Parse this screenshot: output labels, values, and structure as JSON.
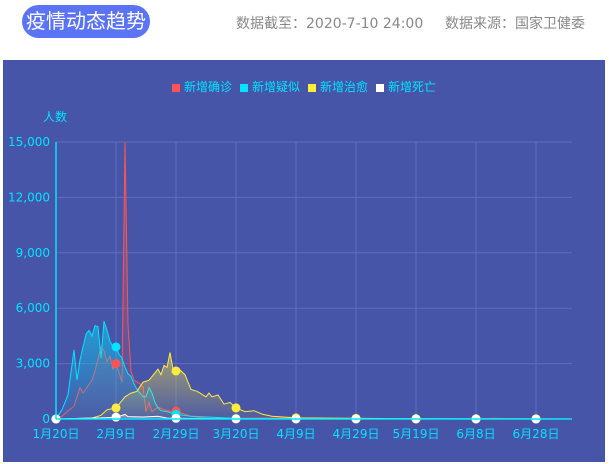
{
  "header": {
    "title": "疫情动态趋势",
    "data_as_of": "数据截至：2020-7-10 24:00",
    "source": "数据来源：国家卫健委"
  },
  "chart_data": {
    "type": "area",
    "ylabel": "人数",
    "ylim": [
      0,
      15000
    ],
    "yticks": [
      "0",
      "3,000",
      "6,000",
      "9,000",
      "12,000",
      "15,000"
    ],
    "xrange": [
      "2020-01-20",
      "2020-07-10"
    ],
    "xticks": [
      {
        "date": "2020-01-20",
        "label": "1月20日"
      },
      {
        "date": "2020-02-09",
        "label": "2月9日"
      },
      {
        "date": "2020-02-29",
        "label": "2月29日"
      },
      {
        "date": "2020-03-20",
        "label": "3月20日"
      },
      {
        "date": "2020-04-09",
        "label": "4月9日"
      },
      {
        "date": "2020-04-29",
        "label": "4月29日"
      },
      {
        "date": "2020-05-19",
        "label": "5月19日"
      },
      {
        "date": "2020-06-08",
        "label": "6月8日"
      },
      {
        "date": "2020-06-28",
        "label": "6月28日"
      }
    ],
    "grid": true,
    "legend_position": "top-center",
    "series": [
      {
        "name": "新增确诊",
        "color": "#ff5353",
        "points": [
          [
            "2020-01-20",
            0
          ],
          [
            "2020-01-22",
            150
          ],
          [
            "2020-01-24",
            450
          ],
          [
            "2020-01-26",
            700
          ],
          [
            "2020-01-28",
            1700
          ],
          [
            "2020-01-29",
            1400
          ],
          [
            "2020-02-01",
            2100
          ],
          [
            "2020-02-02",
            2600
          ],
          [
            "2020-02-04",
            3900
          ],
          [
            "2020-02-05",
            3700
          ],
          [
            "2020-02-06",
            3100
          ],
          [
            "2020-02-07",
            3400
          ],
          [
            "2020-02-08",
            2700
          ],
          [
            "2020-02-09",
            3000
          ],
          [
            "2020-02-10",
            2500
          ],
          [
            "2020-02-11",
            2000
          ],
          [
            "2020-02-12",
            15150
          ],
          [
            "2020-02-13",
            5100
          ],
          [
            "2020-02-14",
            2600
          ],
          [
            "2020-02-15",
            2100
          ],
          [
            "2020-02-16",
            2000
          ],
          [
            "2020-02-17",
            1900
          ],
          [
            "2020-02-18",
            1750
          ],
          [
            "2020-02-19",
            400
          ],
          [
            "2020-02-20",
            900
          ],
          [
            "2020-02-21",
            400
          ],
          [
            "2020-02-23",
            650
          ],
          [
            "2020-02-25",
            500
          ],
          [
            "2020-02-27",
            430
          ],
          [
            "2020-02-29",
            430
          ],
          [
            "2020-03-05",
            140
          ],
          [
            "2020-03-10",
            30
          ],
          [
            "2020-03-20",
            40
          ],
          [
            "2020-04-09",
            60
          ],
          [
            "2020-04-29",
            10
          ],
          [
            "2020-06-08",
            5
          ],
          [
            "2020-06-14",
            40
          ],
          [
            "2020-06-28",
            15
          ],
          [
            "2020-07-10",
            10
          ]
        ]
      },
      {
        "name": "新增疑似",
        "color": "#00e5ff",
        "points": [
          [
            "2020-01-20",
            0
          ],
          [
            "2020-01-22",
            500
          ],
          [
            "2020-01-24",
            1300
          ],
          [
            "2020-01-26",
            3740
          ],
          [
            "2020-01-27",
            2100
          ],
          [
            "2020-01-28",
            3200
          ],
          [
            "2020-01-30",
            4600
          ],
          [
            "2020-01-31",
            4800
          ],
          [
            "2020-02-01",
            4500
          ],
          [
            "2020-02-02",
            5050
          ],
          [
            "2020-02-03",
            5000
          ],
          [
            "2020-02-04",
            3300
          ],
          [
            "2020-02-05",
            5300
          ],
          [
            "2020-02-06",
            4800
          ],
          [
            "2020-02-07",
            4200
          ],
          [
            "2020-02-08",
            3900
          ],
          [
            "2020-02-09",
            3900
          ],
          [
            "2020-02-10",
            3500
          ],
          [
            "2020-02-11",
            3300
          ],
          [
            "2020-02-12",
            2800
          ],
          [
            "2020-02-13",
            2450
          ],
          [
            "2020-02-14",
            2300
          ],
          [
            "2020-02-15",
            1900
          ],
          [
            "2020-02-16",
            1600
          ],
          [
            "2020-02-17",
            1400
          ],
          [
            "2020-02-18",
            1200
          ],
          [
            "2020-02-19",
            1200
          ],
          [
            "2020-02-20",
            1700
          ],
          [
            "2020-02-21",
            1400
          ],
          [
            "2020-02-22",
            900
          ],
          [
            "2020-02-23",
            600
          ],
          [
            "2020-02-24",
            450
          ],
          [
            "2020-02-26",
            400
          ],
          [
            "2020-02-29",
            250
          ],
          [
            "2020-03-05",
            150
          ],
          [
            "2020-03-20",
            30
          ],
          [
            "2020-04-09",
            20
          ],
          [
            "2020-07-10",
            0
          ]
        ]
      },
      {
        "name": "新增治愈",
        "color": "#ffeb3b",
        "points": [
          [
            "2020-01-20",
            0
          ],
          [
            "2020-02-01",
            50
          ],
          [
            "2020-02-04",
            200
          ],
          [
            "2020-02-06",
            500
          ],
          [
            "2020-02-09",
            600
          ],
          [
            "2020-02-12",
            1200
          ],
          [
            "2020-02-14",
            1400
          ],
          [
            "2020-02-16",
            1500
          ],
          [
            "2020-02-18",
            2000
          ],
          [
            "2020-02-20",
            2100
          ],
          [
            "2020-02-21",
            2300
          ],
          [
            "2020-02-23",
            2700
          ],
          [
            "2020-02-24",
            2400
          ],
          [
            "2020-02-25",
            2900
          ],
          [
            "2020-02-26",
            2800
          ],
          [
            "2020-02-27",
            3600
          ],
          [
            "2020-02-28",
            2700
          ],
          [
            "2020-02-29",
            2600
          ],
          [
            "2020-03-01",
            2700
          ],
          [
            "2020-03-03",
            2400
          ],
          [
            "2020-03-05",
            1600
          ],
          [
            "2020-03-07",
            1500
          ],
          [
            "2020-03-08",
            1400
          ],
          [
            "2020-03-10",
            1200
          ],
          [
            "2020-03-11",
            1400
          ],
          [
            "2020-03-12",
            1200
          ],
          [
            "2020-03-14",
            1300
          ],
          [
            "2020-03-16",
            800
          ],
          [
            "2020-03-18",
            900
          ],
          [
            "2020-03-20",
            600
          ],
          [
            "2020-03-23",
            400
          ],
          [
            "2020-03-26",
            450
          ],
          [
            "2020-03-29",
            250
          ],
          [
            "2020-04-01",
            150
          ],
          [
            "2020-04-09",
            60
          ],
          [
            "2020-04-20",
            50
          ],
          [
            "2020-05-10",
            20
          ],
          [
            "2020-07-10",
            0
          ]
        ]
      },
      {
        "name": "新增死亡",
        "color": "#ffffff",
        "points": [
          [
            "2020-01-20",
            0
          ],
          [
            "2020-01-28",
            30
          ],
          [
            "2020-02-04",
            60
          ],
          [
            "2020-02-09",
            100
          ],
          [
            "2020-02-12",
            250
          ],
          [
            "2020-02-13",
            130
          ],
          [
            "2020-02-18",
            110
          ],
          [
            "2020-02-23",
            150
          ],
          [
            "2020-02-26",
            50
          ],
          [
            "2020-02-29",
            40
          ],
          [
            "2020-03-10",
            20
          ],
          [
            "2020-03-20",
            5
          ],
          [
            "2020-04-09",
            0
          ],
          [
            "2020-07-10",
            0
          ]
        ]
      }
    ]
  }
}
